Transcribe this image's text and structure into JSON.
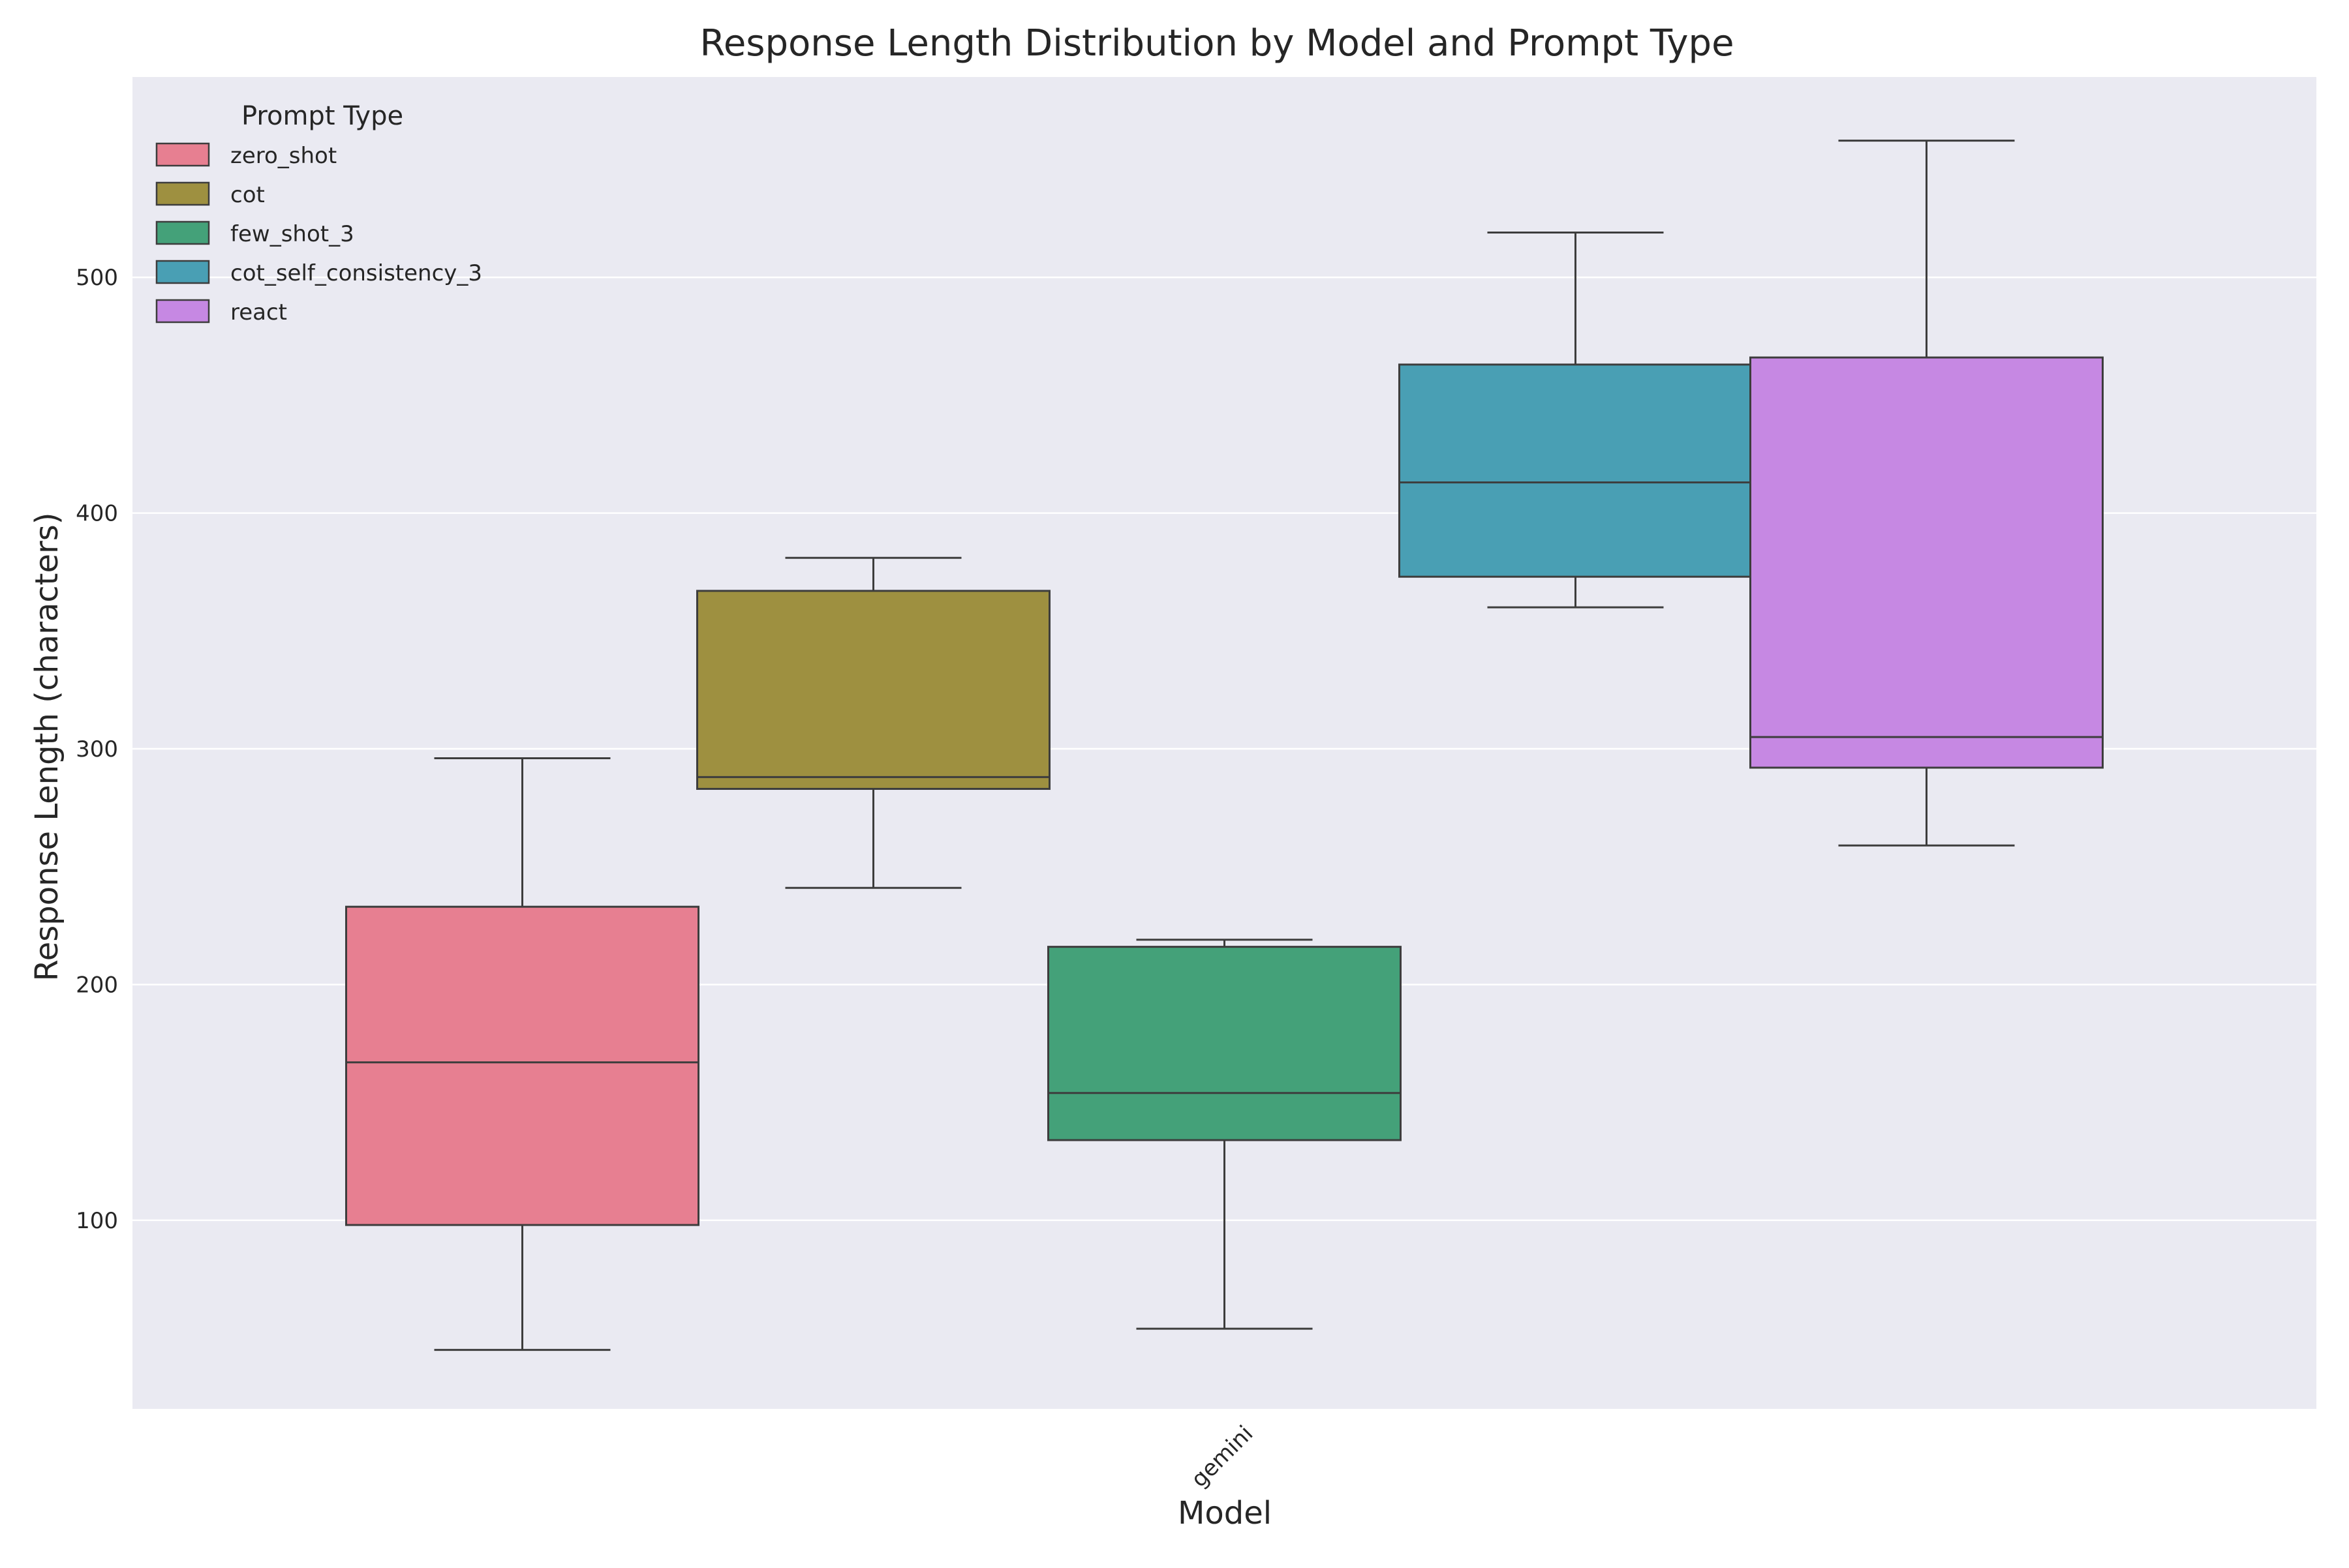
{
  "chart_data": {
    "type": "box",
    "title": "Response Length Distribution by Model and Prompt Type",
    "xlabel": "Model",
    "ylabel": "Response Length (characters)",
    "categories": [
      "gemini"
    ],
    "ylim": [
      20,
      585
    ],
    "yticks": [
      100,
      200,
      300,
      400,
      500
    ],
    "grid": true,
    "legend": {
      "title": "Prompt Type",
      "placement": "top-left"
    },
    "series": [
      {
        "name": "zero_shot",
        "color": "#e77f91",
        "whislo": 45,
        "q1": 98,
        "med": 167,
        "q3": 233,
        "whishi": 296
      },
      {
        "name": "cot",
        "color": "#9e9040",
        "whislo": 241,
        "q1": 283,
        "med": 288,
        "q3": 367,
        "whishi": 381
      },
      {
        "name": "few_shot_3",
        "color": "#44a179",
        "whislo": 54,
        "q1": 134,
        "med": 154,
        "q3": 216,
        "whishi": 219
      },
      {
        "name": "cot_self_consistency_3",
        "color": "#499fb4",
        "whislo": 360,
        "q1": 373,
        "med": 413,
        "q3": 463,
        "whishi": 519
      },
      {
        "name": "react",
        "color": "#c688e3",
        "whislo": 259,
        "q1": 292,
        "med": 305,
        "q3": 466,
        "whishi": 558
      }
    ]
  }
}
